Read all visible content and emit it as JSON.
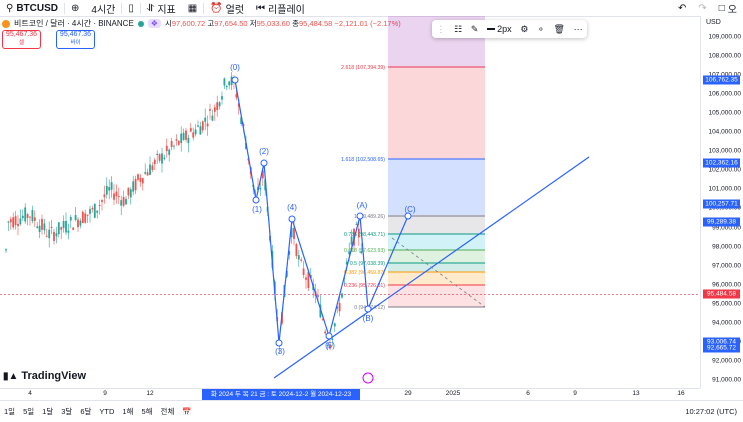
{
  "toolbar": {
    "symbol": "BTCUSD",
    "interval": "4시간",
    "indicators": "지표",
    "alert": "얼럿",
    "replay": "리플레이",
    "publish": "오"
  },
  "legend": {
    "name": "비트코인 / 달러 · 4시간 · BINANCE",
    "ohlc": [
      {
        "k": "시",
        "v": "97,600.72"
      },
      {
        "k": "고",
        "v": "97,654.50"
      },
      {
        "k": "저",
        "v": "95,033.60"
      },
      {
        "k": "종",
        "v": "95,484.58"
      }
    ],
    "change": "−2,121.01 (−2.17%)",
    "sell_price": "95,467.36",
    "sell_label": "셀",
    "buy_price": "95,467.36",
    "buy_label": "바이"
  },
  "drawing_toolbar": {
    "width_label": "2px"
  },
  "price_scale": {
    "currency": "USD",
    "ticks": [
      "109,000.00",
      "108,000.00",
      "107,000.00",
      "106,000.00",
      "105,000.00",
      "104,000.00",
      "103,000.00",
      "102,000.00",
      "101,000.00",
      "100,000.00",
      "99,000.00",
      "98,000.00",
      "97,000.00",
      "96,000.00",
      "95,000.00",
      "94,000.00",
      "93,000.00",
      "92,000.00",
      "91,000.00"
    ],
    "labels": [
      {
        "text": "106,762.35",
        "color": "#2962ff"
      },
      {
        "text": "102,362.16",
        "color": "#2962ff"
      },
      {
        "text": "100,257.71",
        "color": "#2962ff"
      },
      {
        "text": "99,289.38",
        "color": "#2962ff"
      },
      {
        "text": "95,484.58",
        "color": "#f23645"
      },
      {
        "text": "93,006.74",
        "color": "#2962ff"
      },
      {
        "text": "92,665.72",
        "color": "#2962ff"
      }
    ]
  },
  "fib_levels": [
    {
      "text": "2.618 (107,394.39)",
      "color": "#f23645"
    },
    {
      "text": "1.618 (102,508.65)",
      "color": "#2962ff"
    },
    {
      "text": "1 (99,489.26)",
      "color": "#787b86"
    },
    {
      "text": "0.786 (98,443.71)",
      "color": "#089981"
    },
    {
      "text": "0.618 (97,623.93)",
      "color": "#4caf50"
    },
    {
      "text": "0.5 (97,038.39)",
      "color": "#089981"
    },
    {
      "text": "0.382 (96,459.87)",
      "color": "#ff9800"
    },
    {
      "text": "0.236 (95,726.01)",
      "color": "#f23645"
    },
    {
      "text": "0 (94,574.12)",
      "color": "#787b86"
    }
  ],
  "wave_labels": [
    "(0)",
    "(1)",
    "(2)",
    "(3)",
    "(4)",
    "(5)",
    "(A)",
    "(B)",
    "(C)"
  ],
  "time_scale": {
    "ticks": [
      "4",
      "9",
      "12",
      "29",
      "2025",
      "6",
      "9",
      "13",
      "16"
    ],
    "selected": "화 2024 두 목 21 금 : 토 2024-12-2   월 2024-12-23   20:00"
  },
  "bottom_bar": {
    "ranges": [
      "1일",
      "5일",
      "1달",
      "3달",
      "6달",
      "YTD",
      "1해",
      "5해",
      "전체"
    ],
    "clock": "10:27:02 (UTC)"
  },
  "brand": "TradingView",
  "colors": {
    "up": "#26a69a",
    "down": "#ef5350",
    "accent": "#2962ff"
  }
}
